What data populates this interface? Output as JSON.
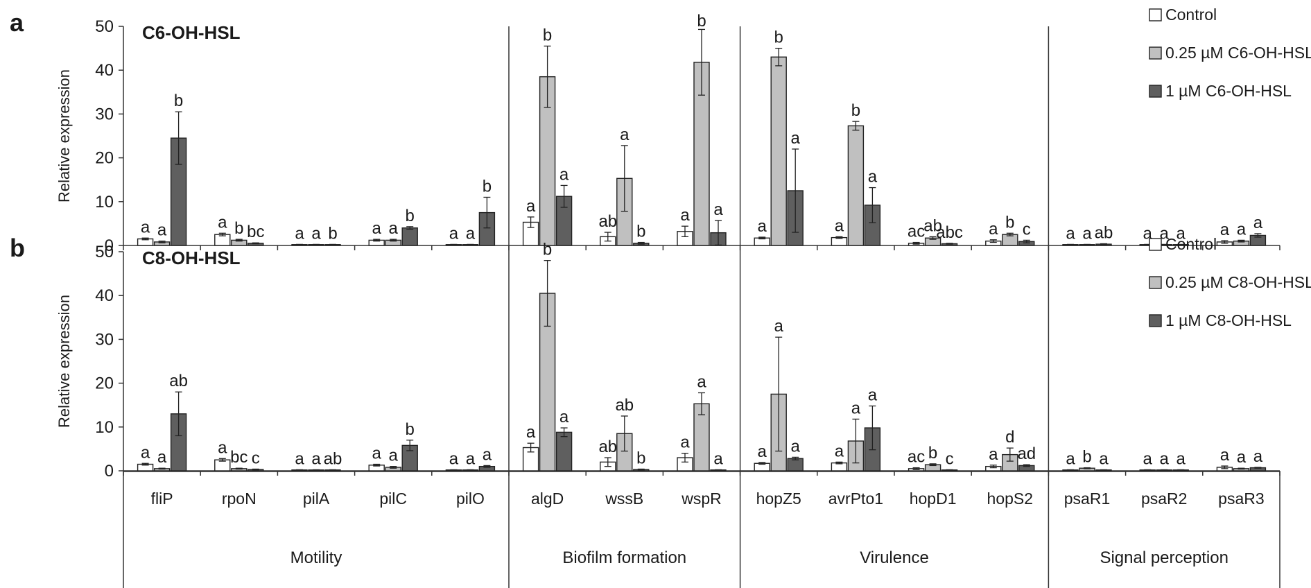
{
  "chart_data": [
    {
      "panel_label": "a",
      "type": "bar",
      "title": "C6-OH-HSL",
      "ylabel": "Relative expression",
      "ylim": [
        0,
        50
      ],
      "yticks": [
        0,
        10,
        20,
        30,
        40,
        50
      ],
      "categories": [
        "fliP",
        "rpoN",
        "pilA",
        "pilC",
        "pilO",
        "algD",
        "wssB",
        "wspR",
        "hopZ5",
        "avrPto1",
        "hopD1",
        "hopS2",
        "psaR1",
        "psaR2",
        "psaR3"
      ],
      "series": [
        {
          "name": "Control",
          "color": "#ffffff",
          "values": [
            1.5,
            2.5,
            0.2,
            1.2,
            0.2,
            5.3,
            2.0,
            3.2,
            1.7,
            1.8,
            0.5,
            1.0,
            0.2,
            0.2,
            0.8
          ],
          "errors": [
            0.2,
            0.3,
            0.05,
            0.2,
            0.05,
            1.2,
            1.0,
            1.2,
            0.2,
            0.2,
            0.2,
            0.3,
            0.05,
            0.05,
            0.3
          ],
          "letters": [
            "a",
            "a",
            "a",
            "a",
            "a",
            "a",
            "ab",
            "a",
            "a",
            "a",
            "ac",
            "a",
            "a",
            "a",
            "a"
          ]
        },
        {
          "name": "0.25 µM C6-OH-HSL",
          "color": "#c0c0c0",
          "values": [
            0.8,
            1.2,
            0.2,
            1.2,
            0.2,
            38.5,
            15.3,
            41.8,
            43.0,
            27.3,
            1.7,
            2.5,
            0.2,
            0.2,
            1.0
          ],
          "errors": [
            0.2,
            0.2,
            0.05,
            0.2,
            0.05,
            7.0,
            7.5,
            7.5,
            2.0,
            1.0,
            0.3,
            0.3,
            0.05,
            0.05,
            0.2
          ],
          "letters": [
            "a",
            "b",
            "a",
            "a",
            "a",
            "b",
            "a",
            "b",
            "b",
            "b",
            "ab",
            "b",
            "a",
            "a",
            "a"
          ]
        },
        {
          "name": "1 µM C6-OH-HSL",
          "color": "#5f5f5f",
          "values": [
            24.5,
            0.5,
            0.2,
            4.0,
            7.5,
            11.2,
            0.5,
            2.9,
            12.5,
            9.2,
            0.4,
            0.9,
            0.3,
            0.2,
            2.3
          ],
          "errors": [
            6.0,
            0.1,
            0.05,
            0.3,
            3.5,
            2.5,
            0.2,
            2.8,
            9.5,
            4.0,
            0.1,
            0.3,
            0.1,
            0.05,
            0.4
          ],
          "letters": [
            "b",
            "bc",
            "b",
            "b",
            "b",
            "a",
            "b",
            "a",
            "a",
            "a",
            "abc",
            "c",
            "ab",
            "a",
            "a"
          ]
        }
      ],
      "legend": [
        "Control",
        "0.25 µM C6-OH-HSL",
        "1 µM C6-OH-HSL"
      ]
    },
    {
      "panel_label": "b",
      "type": "bar",
      "title": "C8-OH-HSL",
      "ylabel": "Relative expression",
      "ylim": [
        0,
        50
      ],
      "yticks": [
        0,
        10,
        20,
        30,
        40,
        50
      ],
      "categories": [
        "fliP",
        "rpoN",
        "pilA",
        "pilC",
        "pilO",
        "algD",
        "wssB",
        "wspR",
        "hopZ5",
        "avrPto1",
        "hopD1",
        "hopS2",
        "psaR1",
        "psaR2",
        "psaR3"
      ],
      "series": [
        {
          "name": "Control",
          "color": "#ffffff",
          "values": [
            1.5,
            2.5,
            0.2,
            1.3,
            0.2,
            5.3,
            2.0,
            3.0,
            1.7,
            1.8,
            0.5,
            1.0,
            0.2,
            0.2,
            0.8
          ],
          "errors": [
            0.2,
            0.3,
            0.05,
            0.2,
            0.05,
            1.0,
            1.0,
            1.0,
            0.2,
            0.2,
            0.2,
            0.3,
            0.05,
            0.05,
            0.3
          ],
          "letters": [
            "a",
            "a",
            "a",
            "a",
            "a",
            "a",
            "ab",
            "a",
            "a",
            "a",
            "ac",
            "a",
            "a",
            "a",
            "a"
          ]
        },
        {
          "name": "0.25 µM C8-OH-HSL",
          "color": "#c0c0c0",
          "values": [
            0.5,
            0.5,
            0.2,
            0.8,
            0.2,
            40.5,
            8.5,
            15.3,
            17.5,
            6.8,
            1.4,
            3.7,
            0.6,
            0.2,
            0.5
          ],
          "errors": [
            0.1,
            0.1,
            0.05,
            0.2,
            0.05,
            7.5,
            4.0,
            2.5,
            13.0,
            5.0,
            0.2,
            1.5,
            0.1,
            0.05,
            0.1
          ],
          "letters": [
            "a",
            "bc",
            "a",
            "a",
            "a",
            "b",
            "ab",
            "a",
            "a",
            "a",
            "b",
            "d",
            "b",
            "a",
            "a"
          ]
        },
        {
          "name": "1 µM C8-OH-HSL",
          "color": "#5f5f5f",
          "values": [
            13.0,
            0.3,
            0.2,
            5.8,
            1.0,
            8.8,
            0.3,
            0.2,
            2.8,
            9.8,
            0.2,
            1.2,
            0.2,
            0.2,
            0.7
          ],
          "errors": [
            5.0,
            0.1,
            0.05,
            1.2,
            0.2,
            1.0,
            0.1,
            0.05,
            0.3,
            5.0,
            0.05,
            0.2,
            0.05,
            0.05,
            0.1
          ],
          "letters": [
            "ab",
            "c",
            "ab",
            "b",
            "a",
            "a",
            "b",
            "a",
            "a",
            "a",
            "c",
            "ad",
            "a",
            "a",
            "a"
          ]
        }
      ],
      "legend": [
        "Control",
        "0.25 µM C8-OH-HSL",
        "1 µM C8-OH-HSL"
      ]
    }
  ],
  "groups": [
    {
      "label": "Motility",
      "start": 0,
      "end": 4
    },
    {
      "label": "Biofilm formation",
      "start": 5,
      "end": 7
    },
    {
      "label": "Virulence",
      "start": 8,
      "end": 11
    },
    {
      "label": "Signal perception",
      "start": 12,
      "end": 14
    }
  ]
}
